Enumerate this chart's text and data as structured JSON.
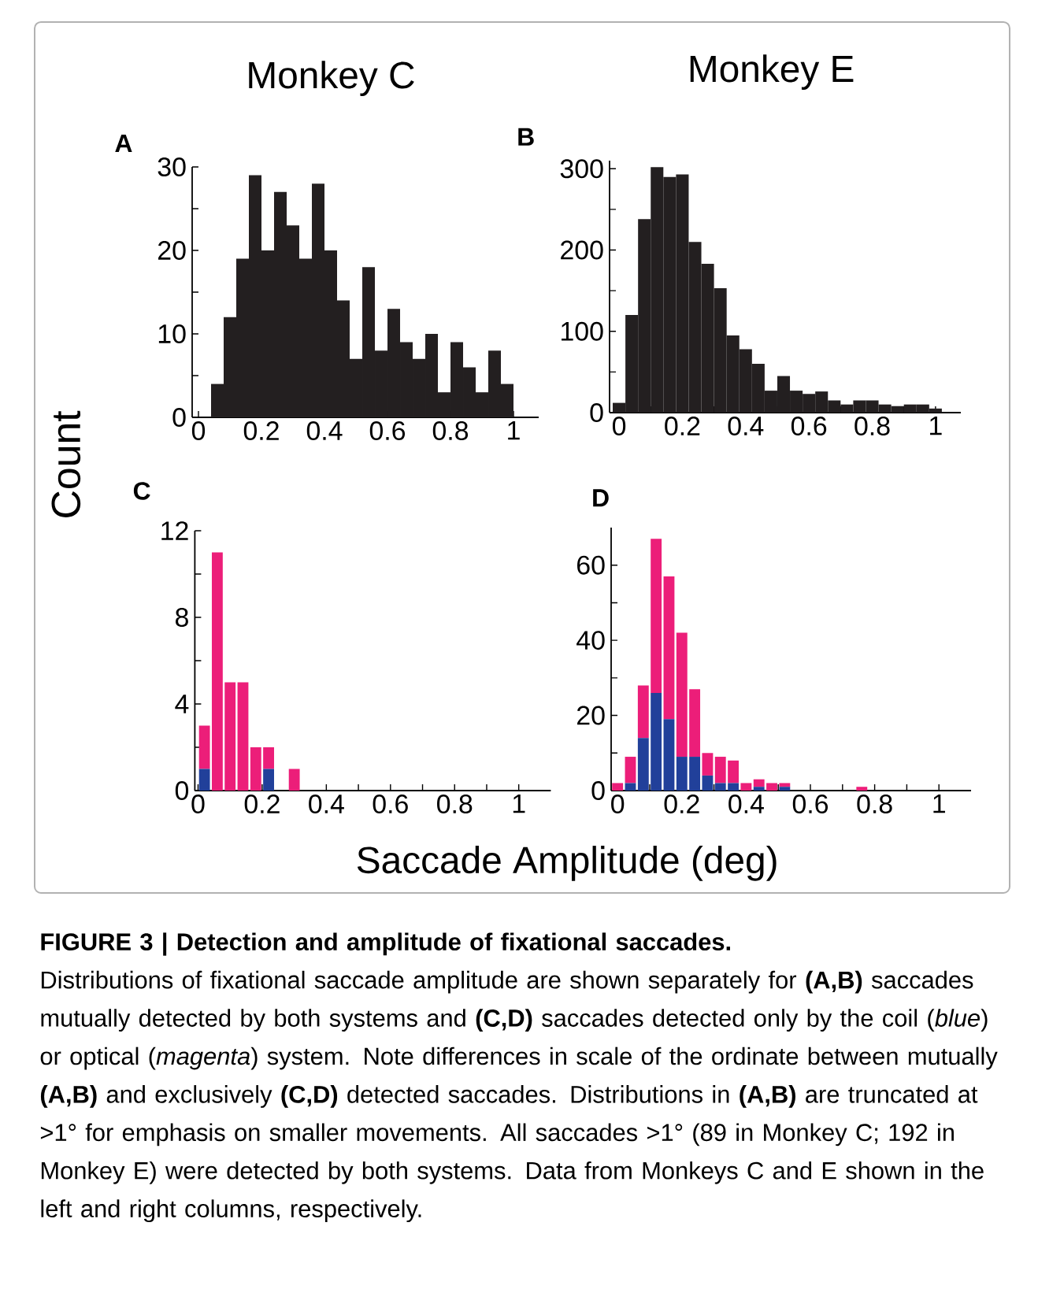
{
  "chart_data": [
    {
      "type": "histogram",
      "title": "Monkey C",
      "ylabel": "Count",
      "annotations": [
        "A"
      ],
      "color": "#231f20",
      "bins": [
        0.04,
        0.08,
        0.12,
        0.16,
        0.2,
        0.24,
        0.28,
        0.32,
        0.36,
        0.4,
        0.44,
        0.48,
        0.52,
        0.56,
        0.6,
        0.64,
        0.68,
        0.72,
        0.76,
        0.8,
        0.84,
        0.88,
        0.92,
        0.96,
        1.0
      ],
      "values": [
        4,
        12,
        19,
        29,
        20,
        27,
        23,
        19,
        28,
        20,
        14,
        7,
        18,
        8,
        13,
        9,
        7,
        10,
        3,
        9,
        6,
        3,
        8,
        4
      ],
      "xlim": [
        -0.02,
        1.08
      ],
      "ylim": [
        0,
        30
      ],
      "xticks": [
        0,
        {
          "value": 0.1,
          "label": null
        },
        0.2,
        {
          "value": 0.3,
          "label": null
        },
        0.4,
        {
          "value": 0.5,
          "label": null
        },
        0.6,
        {
          "value": 0.7,
          "label": null
        },
        0.8,
        {
          "value": 0.9,
          "label": null
        },
        1
      ],
      "yticks": [
        0,
        {
          "value": 5,
          "label": null
        },
        10,
        {
          "value": 15,
          "label": null
        },
        20,
        {
          "value": 25,
          "label": null
        },
        30
      ]
    },
    {
      "type": "histogram",
      "title": "Monkey E",
      "annotations": [
        "B"
      ],
      "color": "#231f20",
      "bins": [
        -0.02,
        0.02,
        0.06,
        0.1,
        0.14,
        0.18,
        0.22,
        0.26,
        0.3,
        0.34,
        0.38,
        0.42,
        0.46,
        0.5,
        0.54,
        0.58,
        0.62,
        0.66,
        0.7,
        0.74,
        0.78,
        0.82,
        0.86,
        0.9,
        0.94,
        0.98,
        1.02
      ],
      "values": [
        12,
        120,
        238,
        302,
        290,
        293,
        210,
        183,
        153,
        95,
        78,
        60,
        27,
        45,
        27,
        23,
        26,
        15,
        10,
        15,
        15,
        10,
        8,
        10,
        10,
        5
      ],
      "xlim": [
        -0.03,
        1.08
      ],
      "ylim": [
        0,
        310
      ],
      "xticks": [
        0,
        {
          "value": 0.1,
          "label": null
        },
        0.2,
        {
          "value": 0.3,
          "label": null
        },
        0.4,
        {
          "value": 0.5,
          "label": null
        },
        0.6,
        {
          "value": 0.7,
          "label": null
        },
        0.8,
        {
          "value": 0.9,
          "label": null
        },
        1
      ],
      "yticks": [
        0,
        {
          "value": 50,
          "label": null
        },
        100,
        {
          "value": 150,
          "label": null
        },
        200,
        {
          "value": 250,
          "label": null
        },
        300
      ]
    },
    {
      "type": "bar",
      "stacked": true,
      "xlabel": "Saccade Amplitude (deg)",
      "annotations": [
        "C"
      ],
      "x": [
        0.02,
        0.06,
        0.1,
        0.14,
        0.18,
        0.22,
        0.26,
        0.3
      ],
      "series": [
        {
          "color": "#21409a",
          "values": [
            1,
            0,
            0,
            0,
            0,
            1,
            0,
            0
          ]
        },
        {
          "color": "#ec1e79",
          "values": [
            2,
            11,
            5,
            5,
            2,
            1,
            0,
            1
          ]
        }
      ],
      "xlim": [
        -0.01,
        1.1
      ],
      "ylim": [
        0,
        12
      ],
      "xticks": [
        0,
        {
          "value": 0.1,
          "label": null
        },
        0.2,
        {
          "value": 0.3,
          "label": null
        },
        0.4,
        {
          "value": 0.5,
          "label": null
        },
        0.6,
        {
          "value": 0.7,
          "label": null
        },
        0.8,
        {
          "value": 0.9,
          "label": null
        },
        1
      ],
      "yticks": [
        0,
        {
          "value": 2,
          "label": null
        },
        4,
        {
          "value": 6,
          "label": null
        },
        8,
        {
          "value": 10,
          "label": null
        },
        12
      ]
    },
    {
      "type": "bar",
      "stacked": true,
      "annotations": [
        "D"
      ],
      "x": [
        0,
        0.04,
        0.08,
        0.12,
        0.16,
        0.2,
        0.24,
        0.28,
        0.32,
        0.36,
        0.4,
        0.44,
        0.48,
        0.52,
        0.56,
        0.6,
        0.64,
        0.68,
        0.72,
        0.76
      ],
      "series": [
        {
          "color": "#21409a",
          "values": [
            0,
            2,
            14,
            26,
            19,
            9,
            9,
            4,
            2,
            2,
            0,
            1,
            0,
            1,
            0,
            0,
            0,
            0,
            0,
            0
          ]
        },
        {
          "color": "#ec1e79",
          "values": [
            2,
            7,
            14,
            41,
            38,
            33,
            18,
            6,
            7,
            6,
            2,
            2,
            2,
            1,
            0,
            0,
            0,
            0,
            0,
            1
          ]
        }
      ],
      "xlim": [
        -0.02,
        1.1
      ],
      "ylim": [
        0,
        70
      ],
      "xticks": [
        0,
        {
          "value": 0.1,
          "label": null
        },
        0.2,
        {
          "value": 0.3,
          "label": null
        },
        0.4,
        {
          "value": 0.5,
          "label": null
        },
        0.6,
        {
          "value": 0.7,
          "label": null
        },
        0.8,
        {
          "value": 0.9,
          "label": null
        },
        1
      ],
      "yticks": [
        0,
        {
          "value": 10,
          "label": null
        },
        20,
        {
          "value": 30,
          "label": null
        },
        40,
        {
          "value": 50,
          "label": null
        },
        60
      ]
    },
    {
      "type": "other",
      "title": "FIGURE 3 | Detection and amplitude of fixational saccades.",
      "annotations": [
        "Distributions of fixational saccade amplitude are shown separately for **(A,B)** saccades mutually detected by both systems and **(C,D)** saccades detected only by the coil (*blue*) or optical (*magenta*) system. Note differences in scale of the ordinate between mutually **(A,B)** and exclusively **(C,D)** detected saccades. Distributions in **(A,B)** are truncated at >1° for emphasis on smaller movements. All saccades >1° (89 in Monkey C; 192 in Monkey E) were detected by both systems. Data from Monkeys C and E shown in the left and right columns, respectively."
      ]
    }
  ]
}
